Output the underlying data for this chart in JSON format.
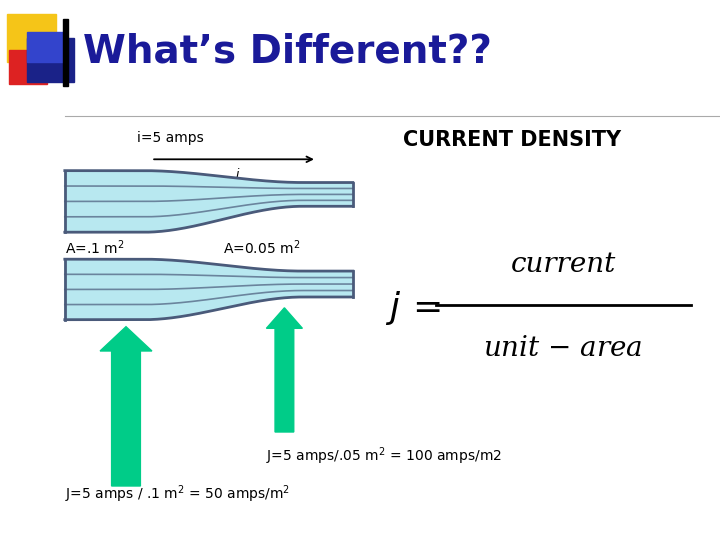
{
  "title": "What’s Different??",
  "title_color": "#1a1a99",
  "title_fontsize": 28,
  "background_color": "#ffffff",
  "current_density_label": "CURRENT DENSITY",
  "i_label": "i=5 amps",
  "arrow_color": "#00cc88",
  "pipe_fill_light": "#b8e8f0",
  "pipe_fill_mid": "#8ecce0",
  "pipe_wall_color": "#4a5a7a",
  "square_yellow": "#f5c518",
  "square_red": "#dd2222",
  "square_blue_dark": "#1a2288",
  "square_blue_med": "#3344cc"
}
